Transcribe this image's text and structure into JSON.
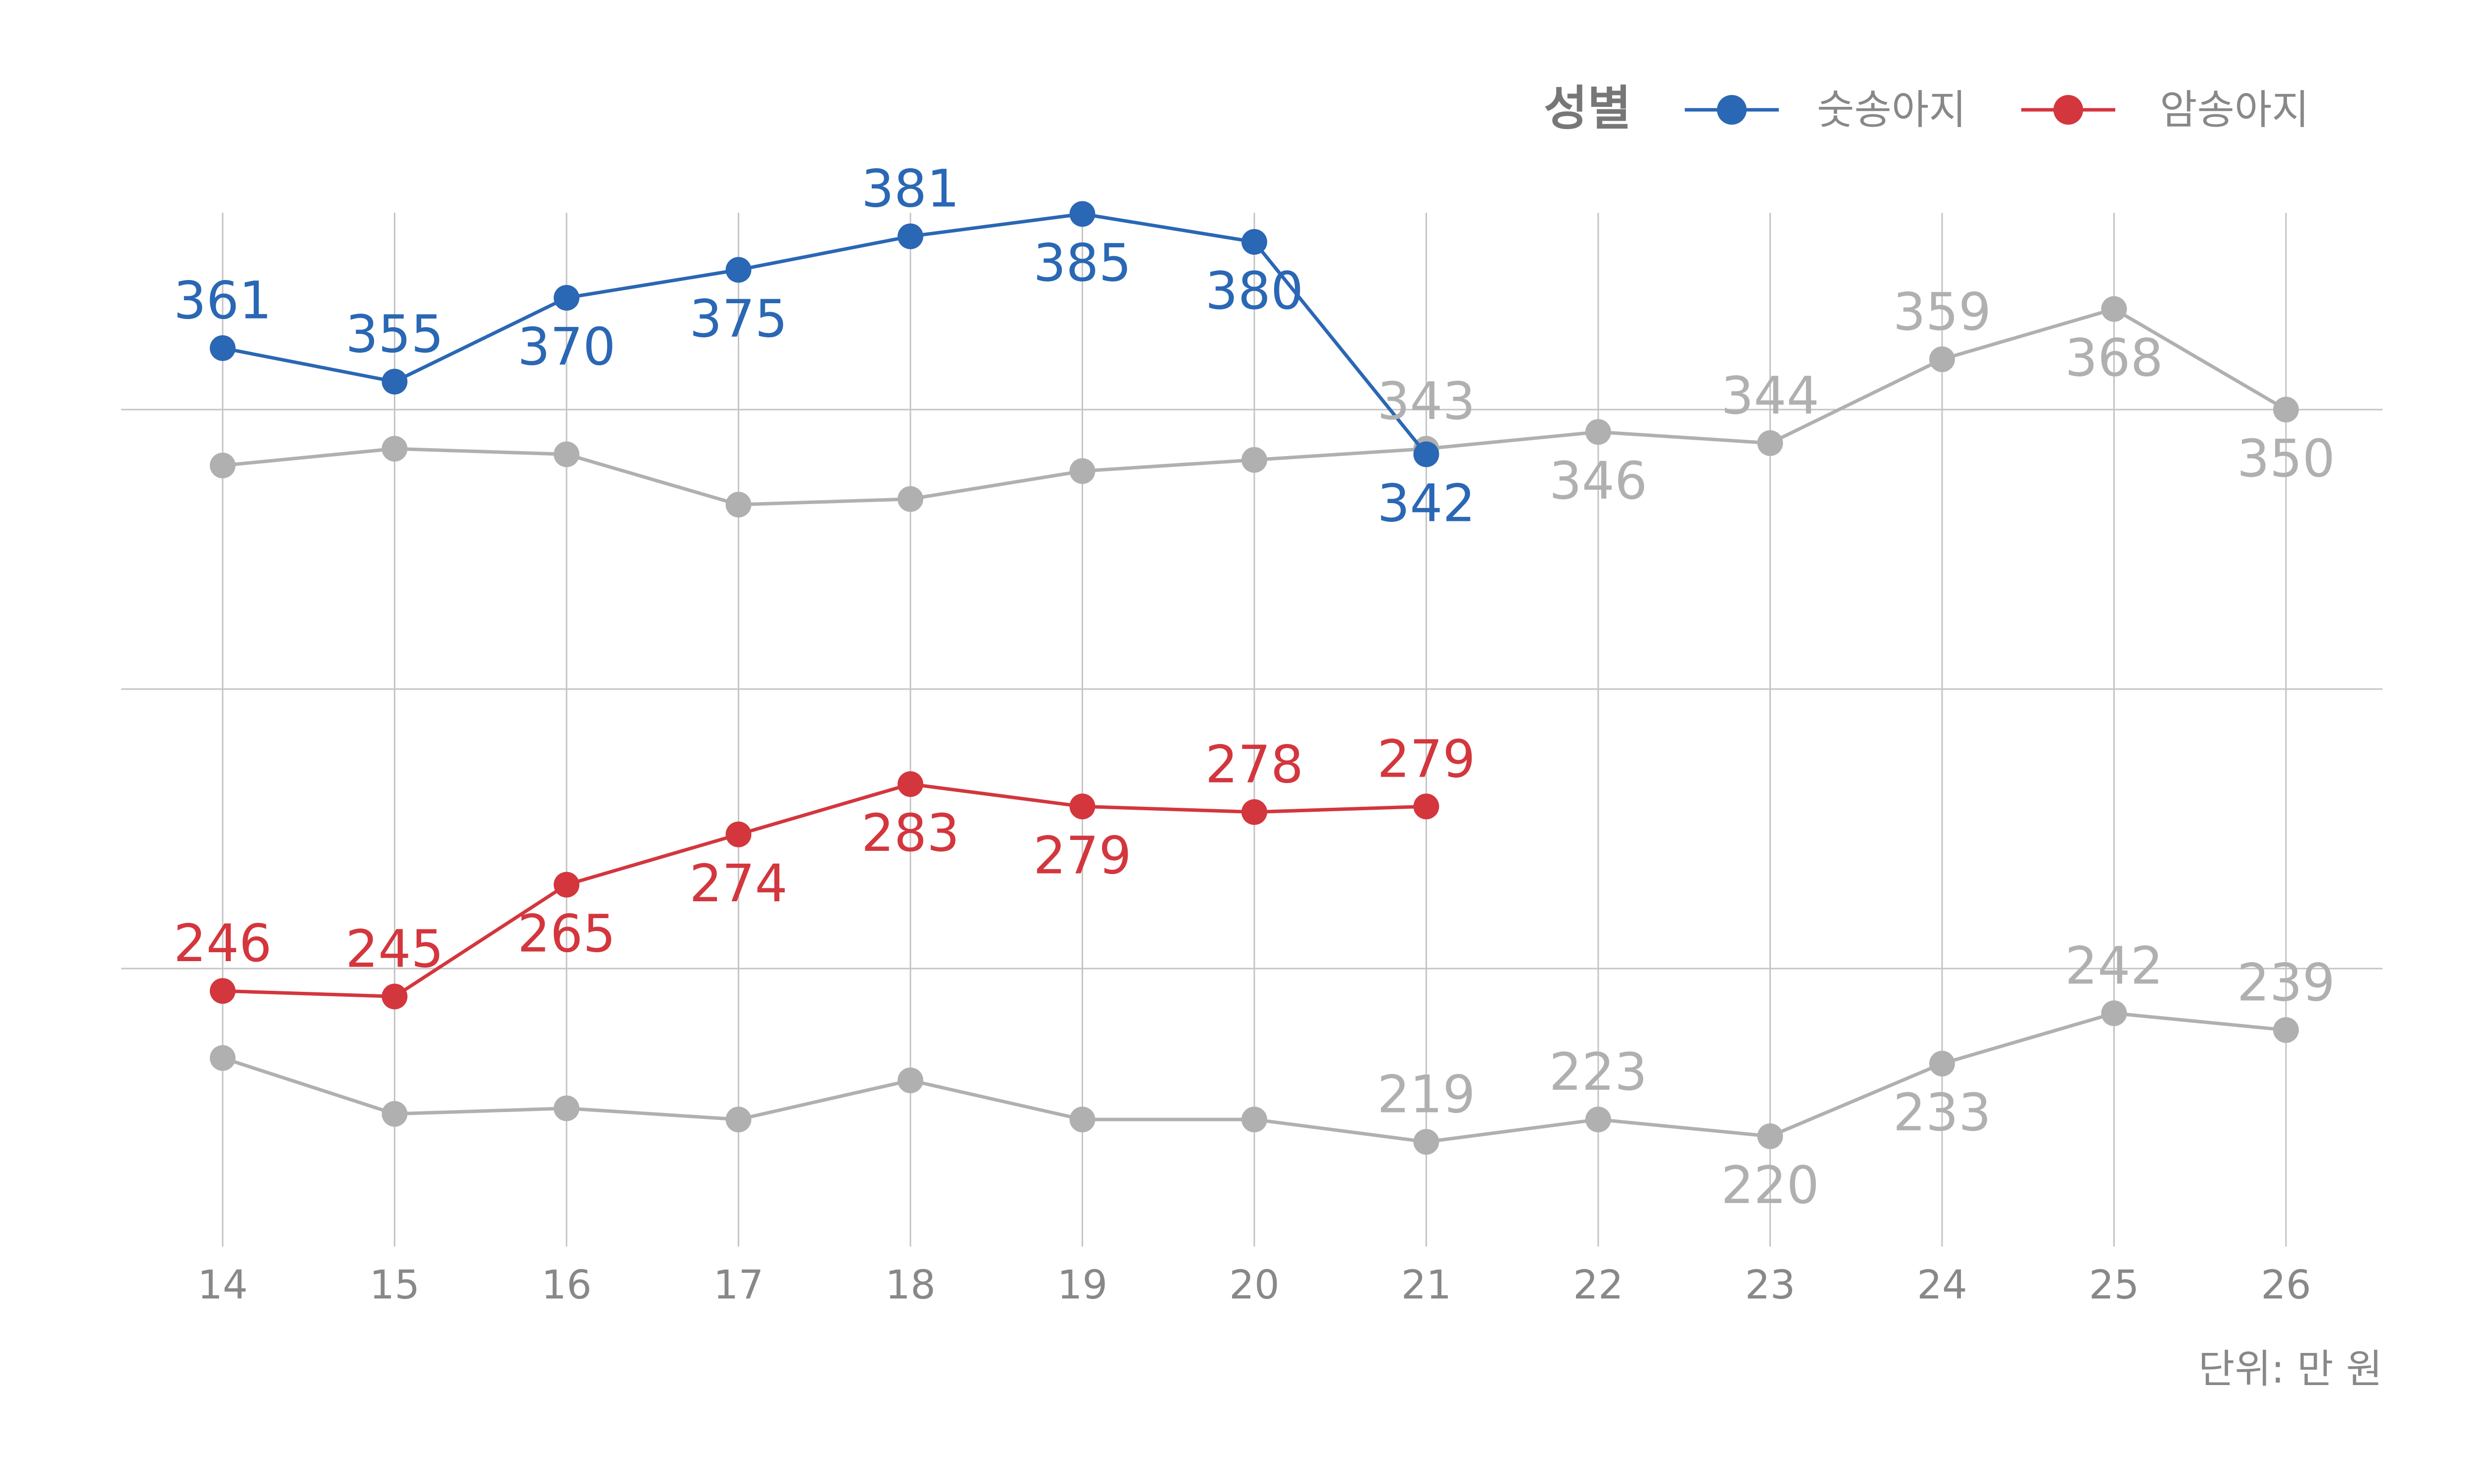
{
  "chart_data": {
    "type": "line",
    "x": [
      14,
      15,
      16,
      17,
      18,
      19,
      20,
      21,
      22,
      23,
      24,
      25,
      26
    ],
    "xlim": [
      13.4,
      26.6
    ],
    "ylim": [
      198,
      400
    ],
    "y_gridlines": [
      250,
      300,
      350
    ],
    "grid": true,
    "legend": {
      "title": "성별",
      "placement": "top-right",
      "entries": [
        "숫송아지",
        "암송아지"
      ]
    },
    "unit_label": "단위: 만 원",
    "series": [
      {
        "name": "숫송아지",
        "color": "#2A67B4",
        "x": [
          14,
          15,
          16,
          17,
          18,
          19,
          20,
          21
        ],
        "values": [
          361,
          355,
          370,
          375,
          381,
          385,
          380,
          342
        ],
        "label_pos": [
          "above",
          "above",
          "below",
          "below",
          "above",
          "below",
          "below",
          "below"
        ]
      },
      {
        "name": "암송아지",
        "color": "#D3363D",
        "x": [
          14,
          15,
          16,
          17,
          18,
          19,
          20,
          21
        ],
        "values": [
          246,
          245,
          265,
          274,
          283,
          279,
          278,
          279
        ],
        "label_pos": [
          "above",
          "above",
          "below",
          "below",
          "below",
          "below",
          "above",
          "above"
        ]
      },
      {
        "color": "#B0B0B0",
        "x": [
          14,
          15,
          16,
          17,
          18,
          19,
          20,
          21,
          22,
          23,
          24,
          25,
          26
        ],
        "values": [
          340,
          343,
          342,
          333,
          334,
          339,
          341,
          343,
          346,
          344,
          359,
          368,
          350
        ],
        "labeled_x": [
          21,
          22,
          23,
          24,
          25,
          26
        ],
        "label_pos": [
          "above",
          "below",
          "above",
          "above",
          "below",
          "below"
        ]
      },
      {
        "color": "#B0B0B0",
        "x": [
          14,
          15,
          16,
          17,
          18,
          19,
          20,
          21,
          22,
          23,
          24,
          25,
          26
        ],
        "values": [
          234,
          224,
          225,
          223,
          230,
          223,
          223,
          219,
          223,
          220,
          233,
          242,
          239
        ],
        "labeled_x": [
          21,
          22,
          23,
          24,
          25,
          26
        ],
        "label_pos": [
          "above",
          "above",
          "below",
          "below",
          "above",
          "above"
        ]
      }
    ]
  }
}
